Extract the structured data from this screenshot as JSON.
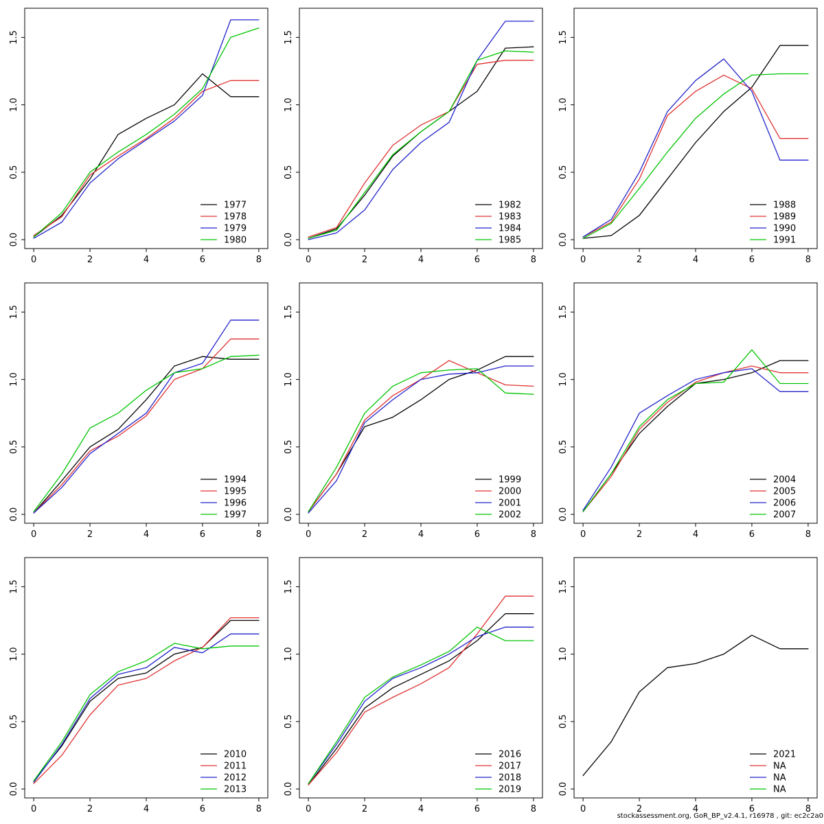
{
  "footer": {
    "text": "stockassessment.org, GoR_BP_v2.4.1, r16978 , git: ec2c2a0"
  },
  "palette": {
    "black": "#000000",
    "red": "#e03030",
    "blue": "#2222cc",
    "green": "#00c400"
  },
  "axes": {
    "xlim": [
      0,
      8
    ],
    "ylim": [
      0,
      1.65
    ],
    "x_ticks": [
      0,
      2,
      4,
      6,
      8
    ],
    "x_tick_labels": [
      "0",
      "2",
      "4",
      "6",
      "8"
    ],
    "y_ticks": [
      0,
      0.5,
      1.0,
      1.5
    ],
    "y_tick_labels": [
      "0.0",
      "0.5",
      "1.0",
      "1.5"
    ],
    "grid": false,
    "legend_position": "bottom-right"
  },
  "chart_data": [
    {
      "type": "line",
      "x": [
        0,
        1,
        2,
        3,
        4,
        5,
        6,
        7,
        8
      ],
      "series": [
        {
          "name": "1977",
          "color": "black",
          "values": [
            0.02,
            0.18,
            0.45,
            0.78,
            0.9,
            1.0,
            1.23,
            1.06,
            1.06
          ]
        },
        {
          "name": "1978",
          "color": "red",
          "values": [
            0.03,
            0.17,
            0.48,
            0.62,
            0.75,
            0.9,
            1.1,
            1.18,
            1.18
          ]
        },
        {
          "name": "1979",
          "color": "blue",
          "values": [
            0.01,
            0.13,
            0.42,
            0.6,
            0.74,
            0.88,
            1.07,
            1.63,
            1.63
          ]
        },
        {
          "name": "1980",
          "color": "green",
          "values": [
            0.02,
            0.2,
            0.5,
            0.65,
            0.78,
            0.93,
            1.12,
            1.5,
            1.57
          ]
        }
      ]
    },
    {
      "type": "line",
      "x": [
        0,
        1,
        2,
        3,
        4,
        5,
        6,
        7,
        8
      ],
      "series": [
        {
          "name": "1982",
          "color": "black",
          "values": [
            0.01,
            0.08,
            0.33,
            0.62,
            0.8,
            0.95,
            1.1,
            1.42,
            1.43
          ]
        },
        {
          "name": "1983",
          "color": "red",
          "values": [
            0.02,
            0.09,
            0.42,
            0.7,
            0.85,
            0.95,
            1.3,
            1.33,
            1.33
          ]
        },
        {
          "name": "1984",
          "color": "blue",
          "values": [
            0.0,
            0.05,
            0.22,
            0.52,
            0.72,
            0.87,
            1.33,
            1.62,
            1.62
          ]
        },
        {
          "name": "1985",
          "color": "green",
          "values": [
            0.01,
            0.07,
            0.35,
            0.63,
            0.8,
            0.95,
            1.33,
            1.4,
            1.39
          ]
        }
      ]
    },
    {
      "type": "line",
      "x": [
        0,
        1,
        2,
        3,
        4,
        5,
        6,
        7,
        8
      ],
      "series": [
        {
          "name": "1988",
          "color": "black",
          "values": [
            0.01,
            0.03,
            0.18,
            0.45,
            0.72,
            0.95,
            1.13,
            1.44,
            1.44
          ]
        },
        {
          "name": "1989",
          "color": "red",
          "values": [
            0.02,
            0.13,
            0.45,
            0.92,
            1.1,
            1.22,
            1.12,
            0.75,
            0.75
          ]
        },
        {
          "name": "1990",
          "color": "blue",
          "values": [
            0.02,
            0.15,
            0.5,
            0.95,
            1.18,
            1.34,
            1.1,
            0.59,
            0.59
          ]
        },
        {
          "name": "1991",
          "color": "green",
          "values": [
            0.01,
            0.12,
            0.38,
            0.65,
            0.9,
            1.08,
            1.22,
            1.23,
            1.23
          ]
        }
      ]
    },
    {
      "type": "line",
      "x": [
        0,
        1,
        2,
        3,
        4,
        5,
        6,
        7,
        8
      ],
      "series": [
        {
          "name": "1994",
          "color": "black",
          "values": [
            0.01,
            0.25,
            0.5,
            0.63,
            0.85,
            1.1,
            1.17,
            1.15,
            1.15
          ]
        },
        {
          "name": "1995",
          "color": "red",
          "values": [
            0.01,
            0.22,
            0.47,
            0.58,
            0.73,
            1.0,
            1.08,
            1.3,
            1.3
          ]
        },
        {
          "name": "1996",
          "color": "blue",
          "values": [
            0.01,
            0.2,
            0.45,
            0.6,
            0.75,
            1.05,
            1.12,
            1.44,
            1.44
          ]
        },
        {
          "name": "1997",
          "color": "green",
          "values": [
            0.02,
            0.3,
            0.64,
            0.75,
            0.92,
            1.05,
            1.08,
            1.17,
            1.18
          ]
        }
      ]
    },
    {
      "type": "line",
      "x": [
        0,
        1,
        2,
        3,
        4,
        5,
        6,
        7,
        8
      ],
      "series": [
        {
          "name": "1999",
          "color": "black",
          "values": [
            0.02,
            0.3,
            0.65,
            0.72,
            0.85,
            1.0,
            1.07,
            1.17,
            1.17
          ]
        },
        {
          "name": "2000",
          "color": "red",
          "values": [
            0.02,
            0.3,
            0.7,
            0.88,
            1.0,
            1.14,
            1.05,
            0.96,
            0.95
          ]
        },
        {
          "name": "2001",
          "color": "blue",
          "values": [
            0.01,
            0.25,
            0.68,
            0.85,
            1.0,
            1.04,
            1.05,
            1.1,
            1.1
          ]
        },
        {
          "name": "2002",
          "color": "green",
          "values": [
            0.02,
            0.35,
            0.75,
            0.95,
            1.05,
            1.07,
            1.08,
            0.9,
            0.89
          ]
        }
      ]
    },
    {
      "type": "line",
      "x": [
        0,
        1,
        2,
        3,
        4,
        5,
        6,
        7,
        8
      ],
      "series": [
        {
          "name": "2004",
          "color": "black",
          "values": [
            0.02,
            0.3,
            0.6,
            0.8,
            0.97,
            1.0,
            1.05,
            1.14,
            1.14
          ]
        },
        {
          "name": "2005",
          "color": "red",
          "values": [
            0.02,
            0.28,
            0.63,
            0.83,
            0.98,
            1.05,
            1.1,
            1.05,
            1.05
          ]
        },
        {
          "name": "2006",
          "color": "blue",
          "values": [
            0.03,
            0.35,
            0.75,
            0.88,
            1.0,
            1.05,
            1.08,
            0.91,
            0.91
          ]
        },
        {
          "name": "2007",
          "color": "green",
          "values": [
            0.02,
            0.3,
            0.65,
            0.85,
            0.97,
            0.98,
            1.22,
            0.97,
            0.97
          ]
        }
      ]
    },
    {
      "type": "line",
      "x": [
        0,
        1,
        2,
        3,
        4,
        5,
        6,
        7,
        8
      ],
      "series": [
        {
          "name": "2010",
          "color": "black",
          "values": [
            0.06,
            0.32,
            0.65,
            0.82,
            0.86,
            1.0,
            1.05,
            1.25,
            1.25
          ]
        },
        {
          "name": "2011",
          "color": "red",
          "values": [
            0.04,
            0.25,
            0.55,
            0.77,
            0.82,
            0.95,
            1.05,
            1.27,
            1.27
          ]
        },
        {
          "name": "2012",
          "color": "blue",
          "values": [
            0.05,
            0.33,
            0.67,
            0.85,
            0.9,
            1.05,
            1.01,
            1.15,
            1.15
          ]
        },
        {
          "name": "2013",
          "color": "green",
          "values": [
            0.06,
            0.35,
            0.7,
            0.87,
            0.95,
            1.08,
            1.04,
            1.06,
            1.06
          ]
        }
      ]
    },
    {
      "type": "line",
      "x": [
        0,
        1,
        2,
        3,
        4,
        5,
        6,
        7,
        8
      ],
      "series": [
        {
          "name": "2016",
          "color": "black",
          "values": [
            0.03,
            0.3,
            0.6,
            0.75,
            0.85,
            0.95,
            1.1,
            1.3,
            1.3
          ]
        },
        {
          "name": "2017",
          "color": "red",
          "values": [
            0.03,
            0.27,
            0.57,
            0.68,
            0.78,
            0.9,
            1.15,
            1.43,
            1.43
          ]
        },
        {
          "name": "2018",
          "color": "blue",
          "values": [
            0.04,
            0.33,
            0.65,
            0.82,
            0.9,
            1.0,
            1.13,
            1.2,
            1.2
          ]
        },
        {
          "name": "2019",
          "color": "green",
          "values": [
            0.04,
            0.35,
            0.68,
            0.83,
            0.92,
            1.02,
            1.2,
            1.1,
            1.1
          ]
        }
      ]
    },
    {
      "type": "line",
      "x": [
        0,
        1,
        2,
        3,
        4,
        5,
        6,
        7,
        8
      ],
      "series": [
        {
          "name": "2021",
          "color": "black",
          "values": [
            0.1,
            0.35,
            0.72,
            0.9,
            0.93,
            1.0,
            1.14,
            1.04,
            1.04
          ]
        },
        {
          "name": "NA",
          "color": "red",
          "values": []
        },
        {
          "name": "NA",
          "color": "blue",
          "values": []
        },
        {
          "name": "NA",
          "color": "green",
          "values": []
        }
      ]
    }
  ]
}
